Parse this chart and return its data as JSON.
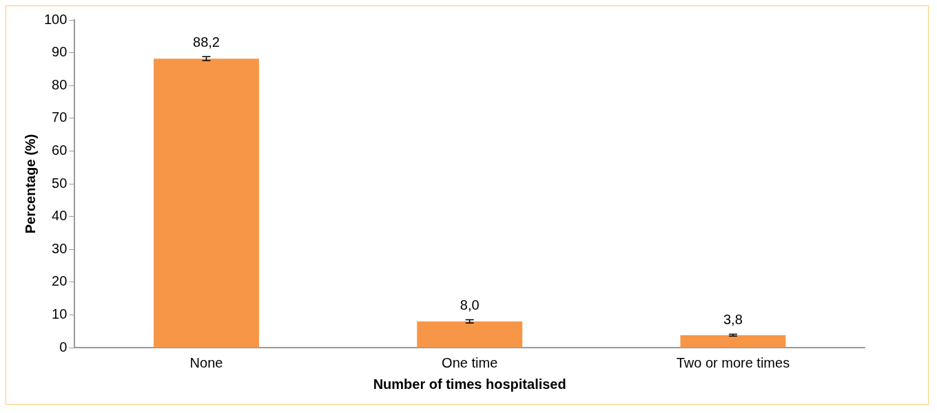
{
  "chart_data": {
    "type": "bar",
    "xlabel": "Number of times hospitalised",
    "ylabel": "Percentage (%)",
    "categories": [
      "None",
      "One time",
      "Two or more times"
    ],
    "values": [
      88.2,
      8.0,
      3.8
    ],
    "errors": [
      0.6,
      0.5,
      0.3
    ],
    "value_labels": [
      "88,2",
      "8,0",
      "3,8"
    ],
    "color": "#f79646",
    "ylim": [
      0,
      100
    ],
    "yticks": [
      0,
      10,
      20,
      30,
      40,
      50,
      60,
      70,
      80,
      90,
      100
    ],
    "grid": false,
    "legend": false
  }
}
